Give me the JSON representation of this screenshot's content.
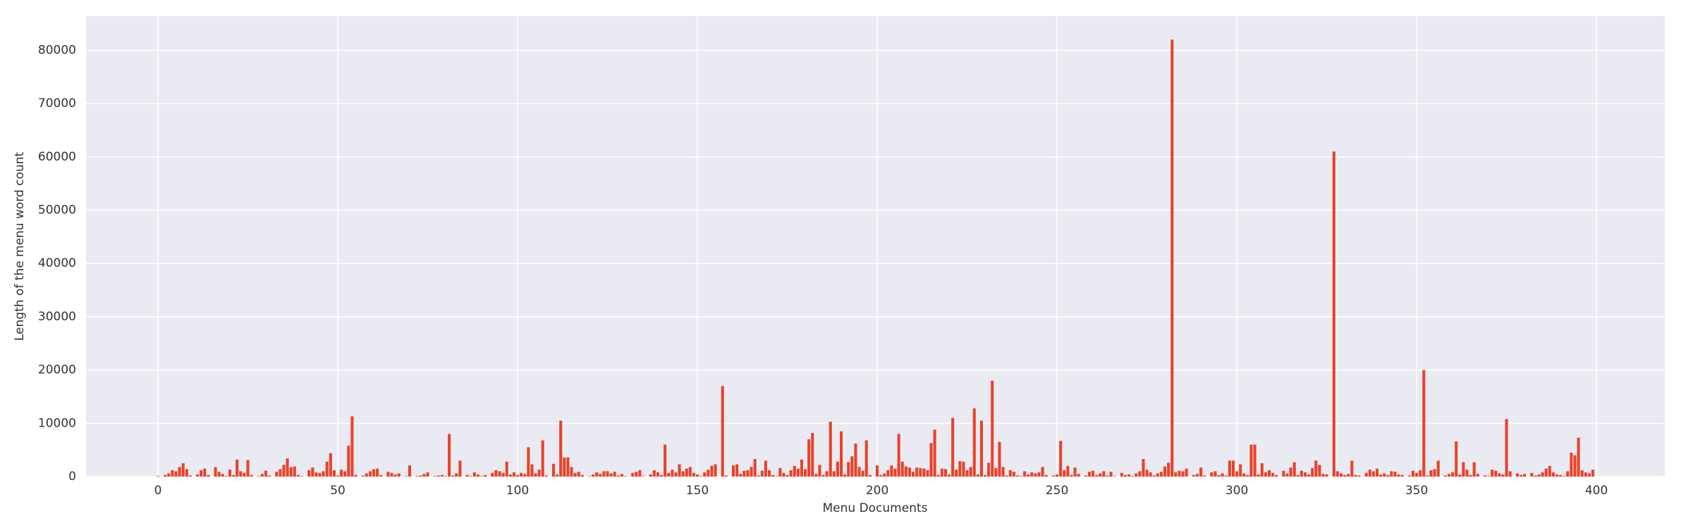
{
  "chart_data": {
    "type": "bar",
    "xlabel": "Menu Documents",
    "ylabel": "Length of the menu word count",
    "color": "#e8432a",
    "grid": true,
    "xlim": [
      -20,
      419
    ],
    "ylim": [
      0,
      86400
    ],
    "xticks": [
      0,
      50,
      100,
      150,
      200,
      250,
      300,
      350,
      400
    ],
    "yticks": [
      0,
      10000,
      20000,
      30000,
      40000,
      50000,
      60000,
      70000,
      80000
    ],
    "x": [
      0,
      1,
      2,
      3,
      4,
      5,
      6,
      7,
      8,
      9,
      10,
      11,
      12,
      13,
      14,
      15,
      16,
      17,
      18,
      19,
      20,
      21,
      22,
      23,
      24,
      25,
      26,
      27,
      28,
      29,
      30,
      31,
      32,
      33,
      34,
      35,
      36,
      37,
      38,
      39,
      40,
      41,
      42,
      43,
      44,
      45,
      46,
      47,
      48,
      49,
      50,
      51,
      52,
      53,
      54,
      55,
      56,
      57,
      58,
      59,
      60,
      61,
      62,
      63,
      64,
      65,
      66,
      67,
      68,
      69,
      70,
      71,
      72,
      73,
      74,
      75,
      76,
      77,
      78,
      79,
      80,
      81,
      82,
      83,
      84,
      85,
      86,
      87,
      88,
      89,
      90,
      91,
      92,
      93,
      94,
      95,
      96,
      97,
      98,
      99,
      100,
      101,
      102,
      103,
      104,
      105,
      106,
      107,
      108,
      109,
      110,
      111,
      112,
      113,
      114,
      115,
      116,
      117,
      118,
      119,
      120,
      121,
      122,
      123,
      124,
      125,
      126,
      127,
      128,
      129,
      130,
      131,
      132,
      133,
      134,
      135,
      136,
      137,
      138,
      139,
      140,
      141,
      142,
      143,
      144,
      145,
      146,
      147,
      148,
      149,
      150,
      151,
      152,
      153,
      154,
      155,
      156,
      157,
      158,
      159,
      160,
      161,
      162,
      163,
      164,
      165,
      166,
      167,
      168,
      169,
      170,
      171,
      172,
      173,
      174,
      175,
      176,
      177,
      178,
      179,
      180,
      181,
      182,
      183,
      184,
      185,
      186,
      187,
      188,
      189,
      190,
      191,
      192,
      193,
      194,
      195,
      196,
      197,
      198,
      199,
      200,
      201,
      202,
      203,
      204,
      205,
      206,
      207,
      208,
      209,
      210,
      211,
      212,
      213,
      214,
      215,
      216,
      217,
      218,
      219,
      220,
      221,
      222,
      223,
      224,
      225,
      226,
      227,
      228,
      229,
      230,
      231,
      232,
      233,
      234,
      235,
      236,
      237,
      238,
      239,
      240,
      241,
      242,
      243,
      244,
      245,
      246,
      247,
      248,
      249,
      250,
      251,
      252,
      253,
      254,
      255,
      256,
      257,
      258,
      259,
      260,
      261,
      262,
      263,
      264,
      265,
      266,
      267,
      268,
      269,
      270,
      271,
      272,
      273,
      274,
      275,
      276,
      277,
      278,
      279,
      280,
      281,
      282,
      283,
      284,
      285,
      286,
      287,
      288,
      289,
      290,
      291,
      292,
      293,
      294,
      295,
      296,
      297,
      298,
      299,
      300,
      301,
      302,
      303,
      304,
      305,
      306,
      307,
      308,
      309,
      310,
      311,
      312,
      313,
      314,
      315,
      316,
      317,
      318,
      319,
      320,
      321,
      322,
      323,
      324,
      325,
      326,
      327,
      328,
      329,
      330,
      331,
      332,
      333,
      334,
      335,
      336,
      337,
      338,
      339,
      340,
      341,
      342,
      343,
      344,
      345,
      346,
      347,
      348,
      349,
      350,
      351,
      352,
      353,
      354,
      355,
      356,
      357,
      358,
      359,
      360,
      361,
      362,
      363,
      364,
      365,
      366,
      367,
      368,
      369,
      370,
      371,
      372,
      373,
      374,
      375,
      376,
      377,
      378,
      379,
      380,
      381,
      382,
      383,
      384,
      385,
      386,
      387,
      388,
      389,
      390,
      391,
      392,
      393,
      394,
      395,
      396,
      397,
      398,
      399
    ],
    "values": [
      100,
      0,
      300,
      600,
      1200,
      1000,
      1800,
      2500,
      1400,
      200,
      0,
      400,
      1200,
      1500,
      300,
      0,
      1800,
      900,
      500,
      100,
      1300,
      300,
      3200,
      1000,
      700,
      3100,
      300,
      0,
      100,
      500,
      1100,
      200,
      0,
      900,
      1400,
      2200,
      3400,
      1800,
      1900,
      300,
      100,
      0,
      1200,
      1700,
      800,
      700,
      1000,
      2800,
      4400,
      1200,
      200,
      1300,
      1000,
      5800,
      11300,
      300,
      0,
      200,
      600,
      1000,
      1400,
      1500,
      300,
      0,
      900,
      700,
      400,
      600,
      0,
      100,
      2100,
      0,
      100,
      200,
      500,
      800,
      0,
      100,
      200,
      300,
      100,
      8000,
      200,
      600,
      3000,
      0,
      300,
      100,
      800,
      400,
      100,
      300,
      0,
      700,
      1200,
      1000,
      700,
      2800,
      400,
      800,
      300,
      700,
      500,
      5500,
      2300,
      600,
      1300,
      6800,
      200,
      0,
      2400,
      400,
      10500,
      3600,
      3600,
      1800,
      700,
      900,
      300,
      0,
      100,
      400,
      800,
      500,
      1000,
      1000,
      600,
      900,
      200,
      500,
      100,
      0,
      700,
      900,
      1200,
      100,
      0,
      400,
      1200,
      800,
      300,
      6000,
      700,
      1300,
      800,
      2300,
      1000,
      1500,
      1800,
      700,
      400,
      100,
      800,
      1300,
      2000,
      2300,
      0,
      17000,
      200,
      0,
      2100,
      2300,
      500,
      1100,
      1200,
      1800,
      3300,
      200,
      1100,
      3000,
      1200,
      300,
      100,
      1600,
      700,
      300,
      1200,
      2000,
      1500,
      3200,
      1400,
      7000,
      8200,
      500,
      2200,
      300,
      1000,
      10300,
      1000,
      2800,
      8500,
      400,
      2700,
      3800,
      6200,
      1800,
      1100,
      6800,
      300,
      0,
      2100,
      300,
      600,
      1200,
      2100,
      1500,
      8000,
      2800,
      1900,
      1700,
      900,
      1700,
      1600,
      1500,
      1200,
      6300,
      8800,
      300,
      1500,
      1400,
      400,
      11000,
      1300,
      2900,
      2800,
      1200,
      1800,
      12800,
      400,
      10500,
      300,
      2600,
      18000,
      1600,
      6500,
      1800,
      200,
      1200,
      900,
      200,
      100,
      1000,
      400,
      800,
      600,
      800,
      1800,
      300,
      0,
      200,
      400,
      6700,
      1200,
      2000,
      300,
      1700,
      500,
      0,
      200,
      900,
      1100,
      300,
      600,
      1000,
      200,
      900,
      100,
      0,
      700,
      300,
      400,
      100,
      600,
      1000,
      3300,
      1300,
      800,
      200,
      600,
      900,
      1900,
      2600,
      82000,
      800,
      1100,
      1000,
      1500,
      0,
      300,
      500,
      1700,
      200,
      0,
      800,
      1000,
      300,
      600,
      200,
      3000,
      3000,
      1000,
      2300,
      600,
      300,
      6000,
      6000,
      400,
      2500,
      800,
      1200,
      700,
      300,
      0,
      1100,
      600,
      1700,
      2700,
      300,
      1100,
      800,
      400,
      1600,
      3000,
      2200,
      500,
      400,
      0,
      61000,
      1000,
      600,
      300,
      500,
      3000,
      300,
      200,
      0,
      700,
      1300,
      1000,
      1500,
      400,
      600,
      300,
      1000,
      900,
      400,
      300,
      0,
      200,
      1100,
      700,
      1200,
      20000,
      200,
      1200,
      1400,
      3000,
      0,
      200,
      500,
      800,
      6600,
      400,
      2700,
      1300,
      300,
      2700,
      500,
      0,
      200,
      100,
      1300,
      1100,
      600,
      400,
      10800,
      1000,
      0,
      600,
      300,
      500,
      0,
      700,
      200,
      400,
      800,
      1500,
      2000,
      800,
      400,
      300,
      100,
      1000,
      4500,
      4000,
      7300,
      1200,
      800,
      600,
      1300
    ]
  }
}
